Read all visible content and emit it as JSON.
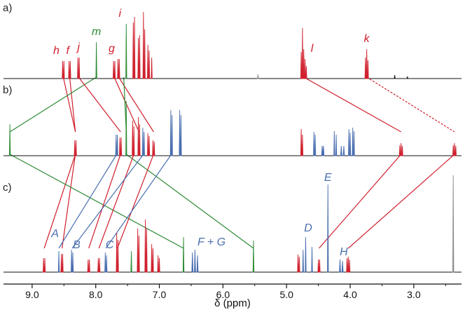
{
  "colors": {
    "red": "#d0202e",
    "green": "#2e8b35",
    "blue": "#4a6fb0",
    "black": "#111111",
    "gray": "#8a8a8a"
  },
  "chart_data": {
    "type": "line",
    "subtype": "stacked NMR spectra",
    "xlabel": "δ (ppm)",
    "xlim": [
      9.45,
      2.25
    ],
    "x_reversed": true,
    "xticks": [
      9.0,
      8.0,
      7.0,
      6.0,
      5.0,
      4.0,
      3.0
    ],
    "xtick_labels": [
      "9.0",
      "8.0",
      "7.0",
      "6.0",
      "5.0",
      "4.0",
      "3.0"
    ],
    "panels": [
      {
        "label": "a)",
        "peaks": [
          {
            "x": 8.52,
            "h": 25,
            "w": 0.01,
            "color": "red"
          },
          {
            "x": 8.5,
            "h": 25,
            "w": 0.01,
            "color": "red"
          },
          {
            "x": 8.42,
            "h": 25,
            "w": 0.01,
            "color": "red"
          },
          {
            "x": 8.4,
            "h": 25,
            "w": 0.01,
            "color": "red"
          },
          {
            "x": 8.28,
            "h": 30,
            "w": 0.01,
            "color": "red"
          },
          {
            "x": 8.26,
            "h": 30,
            "w": 0.01,
            "color": "red"
          },
          {
            "x": 7.99,
            "h": 52,
            "w": 0.01,
            "color": "green"
          },
          {
            "x": 7.72,
            "h": 25,
            "w": 0.01,
            "color": "red"
          },
          {
            "x": 7.7,
            "h": 25,
            "w": 0.01,
            "color": "red"
          },
          {
            "x": 7.65,
            "h": 28,
            "w": 0.01,
            "color": "red"
          },
          {
            "x": 7.63,
            "h": 28,
            "w": 0.01,
            "color": "red"
          },
          {
            "x": 7.52,
            "h": 78,
            "w": 0.01,
            "color": "green"
          },
          {
            "x": 7.41,
            "h": 80,
            "w": 0.01,
            "color": "red"
          },
          {
            "x": 7.39,
            "h": 88,
            "w": 0.01,
            "color": "red"
          },
          {
            "x": 7.33,
            "h": 58,
            "w": 0.01,
            "color": "red"
          },
          {
            "x": 7.31,
            "h": 62,
            "w": 0.01,
            "color": "red"
          },
          {
            "x": 7.25,
            "h": 95,
            "w": 0.01,
            "color": "red"
          },
          {
            "x": 7.23,
            "h": 70,
            "w": 0.01,
            "color": "red"
          },
          {
            "x": 7.18,
            "h": 48,
            "w": 0.01,
            "color": "red"
          },
          {
            "x": 7.16,
            "h": 40,
            "w": 0.01,
            "color": "red"
          },
          {
            "x": 7.12,
            "h": 30,
            "w": 0.01,
            "color": "red"
          },
          {
            "x": 5.45,
            "h": 6,
            "w": 0.008,
            "color": "gray"
          },
          {
            "x": 4.77,
            "h": 38,
            "w": 0.01,
            "color": "red"
          },
          {
            "x": 4.75,
            "h": 72,
            "w": 0.01,
            "color": "red"
          },
          {
            "x": 4.73,
            "h": 42,
            "w": 0.01,
            "color": "red"
          },
          {
            "x": 4.71,
            "h": 28,
            "w": 0.01,
            "color": "red"
          },
          {
            "x": 4.69,
            "h": 18,
            "w": 0.01,
            "color": "red"
          },
          {
            "x": 3.76,
            "h": 30,
            "w": 0.01,
            "color": "red"
          },
          {
            "x": 3.74,
            "h": 42,
            "w": 0.01,
            "color": "red"
          },
          {
            "x": 3.72,
            "h": 26,
            "w": 0.01,
            "color": "red"
          },
          {
            "x": 3.3,
            "h": 5,
            "w": 0.008,
            "color": "black"
          },
          {
            "x": 3.1,
            "h": 3,
            "w": 0.008,
            "color": "black"
          }
        ],
        "labels": [
          {
            "text": "h",
            "x": 8.62,
            "color": "red"
          },
          {
            "text": "f",
            "x": 8.44,
            "color": "red"
          },
          {
            "text": "j",
            "x": 8.27,
            "color": "red"
          },
          {
            "text": "m",
            "x": 7.99,
            "color": "green"
          },
          {
            "text": "g",
            "x": 7.75,
            "color": "red"
          },
          {
            "text": "i",
            "x": 7.62,
            "color": "red"
          },
          {
            "text": "l",
            "x": 4.6,
            "color": "red"
          },
          {
            "text": "k",
            "x": 3.74,
            "color": "red"
          }
        ]
      },
      {
        "label": "b)",
        "peaks": [
          {
            "x": 9.35,
            "h": 45,
            "w": 0.01,
            "color": "green"
          },
          {
            "x": 8.33,
            "h": 22,
            "w": 0.01,
            "color": "red"
          },
          {
            "x": 8.31,
            "h": 22,
            "w": 0.01,
            "color": "red"
          },
          {
            "x": 7.68,
            "h": 30,
            "w": 0.01,
            "color": "blue"
          },
          {
            "x": 7.66,
            "h": 30,
            "w": 0.01,
            "color": "blue"
          },
          {
            "x": 7.62,
            "h": 26,
            "w": 0.01,
            "color": "red"
          },
          {
            "x": 7.6,
            "h": 26,
            "w": 0.01,
            "color": "red"
          },
          {
            "x": 7.52,
            "h": 78,
            "w": 0.01,
            "color": "green"
          },
          {
            "x": 7.42,
            "h": 50,
            "w": 0.01,
            "color": "red"
          },
          {
            "x": 7.4,
            "h": 42,
            "w": 0.01,
            "color": "red"
          },
          {
            "x": 7.33,
            "h": 55,
            "w": 0.01,
            "color": "red"
          },
          {
            "x": 7.31,
            "h": 45,
            "w": 0.01,
            "color": "red"
          },
          {
            "x": 7.26,
            "h": 40,
            "w": 0.01,
            "color": "blue"
          },
          {
            "x": 7.24,
            "h": 34,
            "w": 0.01,
            "color": "blue"
          },
          {
            "x": 7.18,
            "h": 32,
            "w": 0.01,
            "color": "red"
          },
          {
            "x": 7.16,
            "h": 28,
            "w": 0.01,
            "color": "red"
          },
          {
            "x": 7.1,
            "h": 22,
            "w": 0.01,
            "color": "red"
          },
          {
            "x": 7.08,
            "h": 20,
            "w": 0.01,
            "color": "red"
          },
          {
            "x": 6.82,
            "h": 65,
            "w": 0.01,
            "color": "blue"
          },
          {
            "x": 6.8,
            "h": 58,
            "w": 0.01,
            "color": "blue"
          },
          {
            "x": 6.68,
            "h": 65,
            "w": 0.01,
            "color": "blue"
          },
          {
            "x": 6.66,
            "h": 58,
            "w": 0.01,
            "color": "blue"
          },
          {
            "x": 4.77,
            "h": 38,
            "w": 0.01,
            "color": "red"
          },
          {
            "x": 4.75,
            "h": 30,
            "w": 0.01,
            "color": "red"
          },
          {
            "x": 4.57,
            "h": 34,
            "w": 0.01,
            "color": "blue"
          },
          {
            "x": 4.55,
            "h": 30,
            "w": 0.01,
            "color": "blue"
          },
          {
            "x": 4.44,
            "h": 14,
            "w": 0.02,
            "color": "blue"
          },
          {
            "x": 4.42,
            "h": 14,
            "w": 0.02,
            "color": "blue"
          },
          {
            "x": 4.25,
            "h": 35,
            "w": 0.01,
            "color": "blue"
          },
          {
            "x": 4.22,
            "h": 30,
            "w": 0.01,
            "color": "blue"
          },
          {
            "x": 4.14,
            "h": 14,
            "w": 0.02,
            "color": "blue"
          },
          {
            "x": 4.1,
            "h": 14,
            "w": 0.02,
            "color": "blue"
          },
          {
            "x": 4.02,
            "h": 38,
            "w": 0.01,
            "color": "blue"
          },
          {
            "x": 4.0,
            "h": 33,
            "w": 0.01,
            "color": "blue"
          },
          {
            "x": 3.96,
            "h": 40,
            "w": 0.01,
            "color": "blue"
          },
          {
            "x": 3.94,
            "h": 35,
            "w": 0.01,
            "color": "blue"
          },
          {
            "x": 3.22,
            "h": 15,
            "w": 0.01,
            "color": "red"
          },
          {
            "x": 3.2,
            "h": 18,
            "w": 0.01,
            "color": "red"
          },
          {
            "x": 3.18,
            "h": 14,
            "w": 0.01,
            "color": "red"
          },
          {
            "x": 2.38,
            "h": 15,
            "w": 0.01,
            "color": "red"
          },
          {
            "x": 2.36,
            "h": 18,
            "w": 0.01,
            "color": "red"
          },
          {
            "x": 2.34,
            "h": 14,
            "w": 0.01,
            "color": "red"
          }
        ],
        "labels": []
      },
      {
        "label": "c)",
        "peaks": [
          {
            "x": 8.82,
            "h": 20,
            "w": 0.01,
            "color": "red"
          },
          {
            "x": 8.8,
            "h": 20,
            "w": 0.01,
            "color": "red"
          },
          {
            "x": 8.58,
            "h": 30,
            "w": 0.01,
            "color": "blue"
          },
          {
            "x": 8.54,
            "h": 26,
            "w": 0.01,
            "color": "red"
          },
          {
            "x": 8.52,
            "h": 26,
            "w": 0.01,
            "color": "red"
          },
          {
            "x": 8.38,
            "h": 32,
            "w": 0.01,
            "color": "blue"
          },
          {
            "x": 8.36,
            "h": 28,
            "w": 0.01,
            "color": "blue"
          },
          {
            "x": 8.12,
            "h": 18,
            "w": 0.01,
            "color": "red"
          },
          {
            "x": 8.1,
            "h": 18,
            "w": 0.01,
            "color": "red"
          },
          {
            "x": 7.96,
            "h": 20,
            "w": 0.01,
            "color": "red"
          },
          {
            "x": 7.94,
            "h": 20,
            "w": 0.01,
            "color": "red"
          },
          {
            "x": 7.85,
            "h": 28,
            "w": 0.01,
            "color": "blue"
          },
          {
            "x": 7.83,
            "h": 24,
            "w": 0.01,
            "color": "blue"
          },
          {
            "x": 7.67,
            "h": 56,
            "w": 0.01,
            "color": "red"
          },
          {
            "x": 7.65,
            "h": 46,
            "w": 0.01,
            "color": "red"
          },
          {
            "x": 7.44,
            "h": 30,
            "w": 0.01,
            "color": "green"
          },
          {
            "x": 7.34,
            "h": 62,
            "w": 0.01,
            "color": "red"
          },
          {
            "x": 7.32,
            "h": 52,
            "w": 0.01,
            "color": "red"
          },
          {
            "x": 7.22,
            "h": 75,
            "w": 0.01,
            "color": "red"
          },
          {
            "x": 7.2,
            "h": 62,
            "w": 0.01,
            "color": "red"
          },
          {
            "x": 7.12,
            "h": 40,
            "w": 0.01,
            "color": "red"
          },
          {
            "x": 7.1,
            "h": 34,
            "w": 0.01,
            "color": "red"
          },
          {
            "x": 7.02,
            "h": 24,
            "w": 0.01,
            "color": "red"
          },
          {
            "x": 7.0,
            "h": 20,
            "w": 0.01,
            "color": "red"
          },
          {
            "x": 6.62,
            "h": 50,
            "w": 0.01,
            "color": "green"
          },
          {
            "x": 6.48,
            "h": 28,
            "w": 0.02,
            "color": "blue"
          },
          {
            "x": 6.44,
            "h": 32,
            "w": 0.02,
            "color": "blue"
          },
          {
            "x": 6.4,
            "h": 24,
            "w": 0.02,
            "color": "blue"
          },
          {
            "x": 5.52,
            "h": 45,
            "w": 0.01,
            "color": "green"
          },
          {
            "x": 4.82,
            "h": 25,
            "w": 0.01,
            "color": "red"
          },
          {
            "x": 4.8,
            "h": 22,
            "w": 0.01,
            "color": "red"
          },
          {
            "x": 4.74,
            "h": 32,
            "w": 0.01,
            "color": "blue"
          },
          {
            "x": 4.7,
            "h": 50,
            "w": 0.01,
            "color": "blue"
          },
          {
            "x": 4.6,
            "h": 36,
            "w": 0.01,
            "color": "blue"
          },
          {
            "x": 4.5,
            "h": 18,
            "w": 0.01,
            "color": "red"
          },
          {
            "x": 4.48,
            "h": 18,
            "w": 0.01,
            "color": "red"
          },
          {
            "x": 4.35,
            "h": 125,
            "w": 0.01,
            "color": "blue"
          },
          {
            "x": 4.16,
            "h": 18,
            "w": 0.02,
            "color": "blue"
          },
          {
            "x": 4.12,
            "h": 16,
            "w": 0.02,
            "color": "blue"
          },
          {
            "x": 4.05,
            "h": 20,
            "w": 0.01,
            "color": "red"
          },
          {
            "x": 4.03,
            "h": 22,
            "w": 0.01,
            "color": "red"
          },
          {
            "x": 4.01,
            "h": 18,
            "w": 0.01,
            "color": "red"
          },
          {
            "x": 2.38,
            "h": 138,
            "w": 0.01,
            "color": "gray"
          }
        ],
        "labels": [
          {
            "text": "A",
            "x": 8.64,
            "color": "blue"
          },
          {
            "text": "B",
            "x": 8.3,
            "color": "blue"
          },
          {
            "text": "C",
            "x": 7.78,
            "color": "blue"
          },
          {
            "text": "F + G",
            "x": 6.18,
            "color": "blue"
          },
          {
            "text": "D",
            "x": 4.66,
            "color": "blue"
          },
          {
            "text": "E",
            "x": 4.35,
            "color": "blue"
          },
          {
            "text": "H",
            "x": 4.1,
            "color": "blue"
          }
        ]
      }
    ],
    "correlations": [
      {
        "from_panel": 0,
        "from_x": 8.51,
        "to_panel": 1,
        "to_x": 8.32,
        "color": "red"
      },
      {
        "from_panel": 0,
        "from_x": 8.41,
        "to_panel": 1,
        "to_x": 8.32,
        "color": "red"
      },
      {
        "from_panel": 0,
        "from_x": 7.99,
        "to_panel": 1,
        "to_x": 9.35,
        "color": "green"
      },
      {
        "from_panel": 0,
        "from_x": 8.27,
        "to_panel": 1,
        "to_x": 7.61,
        "color": "red"
      },
      {
        "from_panel": 0,
        "from_x": 7.71,
        "to_panel": 1,
        "to_x": 7.32,
        "color": "red"
      },
      {
        "from_panel": 0,
        "from_x": 7.64,
        "to_panel": 1,
        "to_x": 7.09,
        "color": "red"
      },
      {
        "from_panel": 0,
        "from_x": 7.56,
        "to_panel": 1,
        "to_x": 7.52,
        "color": "green"
      },
      {
        "from_panel": 0,
        "from_x": 4.73,
        "to_panel": 1,
        "to_x": 3.2,
        "color": "red"
      },
      {
        "from_panel": 0,
        "from_x": 3.74,
        "to_panel": 1,
        "to_x": 2.36,
        "color": "red",
        "dashed": true
      },
      {
        "from_panel": 1,
        "from_x": 8.32,
        "to_panel": 2,
        "to_x": 8.81,
        "color": "red"
      },
      {
        "from_panel": 1,
        "from_x": 8.32,
        "to_panel": 2,
        "to_x": 8.53,
        "color": "red"
      },
      {
        "from_panel": 1,
        "from_x": 9.35,
        "to_panel": 2,
        "to_x": 6.62,
        "color": "green"
      },
      {
        "from_panel": 1,
        "from_x": 7.67,
        "to_panel": 2,
        "to_x": 8.58,
        "color": "blue"
      },
      {
        "from_panel": 1,
        "from_x": 7.61,
        "to_panel": 2,
        "to_x": 8.11,
        "color": "red"
      },
      {
        "from_panel": 1,
        "from_x": 7.52,
        "to_panel": 2,
        "to_x": 5.52,
        "color": "green"
      },
      {
        "from_panel": 1,
        "from_x": 7.4,
        "to_panel": 2,
        "to_x": 7.95,
        "color": "red"
      },
      {
        "from_panel": 1,
        "from_x": 7.25,
        "to_panel": 2,
        "to_x": 8.37,
        "color": "blue"
      },
      {
        "from_panel": 1,
        "from_x": 7.09,
        "to_panel": 2,
        "to_x": 7.66,
        "color": "red"
      },
      {
        "from_panel": 1,
        "from_x": 6.81,
        "to_panel": 2,
        "to_x": 7.84,
        "color": "blue"
      },
      {
        "from_panel": 1,
        "from_x": 3.2,
        "to_panel": 2,
        "to_x": 4.49,
        "color": "red"
      },
      {
        "from_panel": 1,
        "from_x": 2.36,
        "to_panel": 2,
        "to_x": 4.03,
        "color": "red"
      }
    ]
  }
}
